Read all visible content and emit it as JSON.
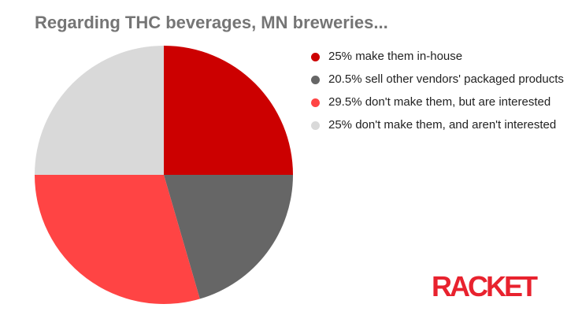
{
  "chart_data": {
    "type": "pie",
    "title": "Regarding THC beverages, MN breweries...",
    "slices": [
      {
        "label": "25% make them in-house",
        "value": 25,
        "color": "#cc0000"
      },
      {
        "label": "20.5% sell other vendors' packaged products",
        "value": 20.5,
        "color": "#666666"
      },
      {
        "label": "29.5% don't make them, but are interested",
        "value": 29.5,
        "color": "#ff4444"
      },
      {
        "label": "25% don't make them, and aren't interested",
        "value": 25,
        "color": "#d9d9d9"
      }
    ],
    "legend": "right"
  },
  "logo": {
    "text": "RACKET",
    "color": "#e8222e"
  }
}
